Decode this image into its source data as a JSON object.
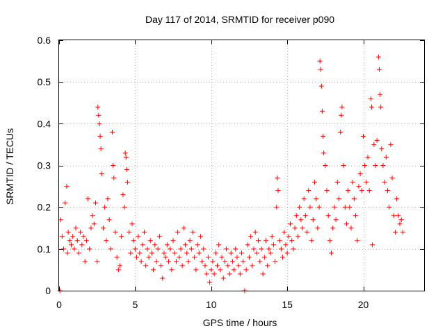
{
  "chart_data": {
    "type": "scatter",
    "title": "Day 117 of 2014, SRMTID for receiver p090",
    "xlabel": "GPS time / hours",
    "ylabel": "SRMTID / TECUs",
    "xlim": [
      0,
      24
    ],
    "ylim": [
      0,
      0.6
    ],
    "xticks": [
      0,
      5,
      10,
      15,
      20
    ],
    "xtick_labels": [
      "0",
      "5",
      "10",
      "15",
      "20"
    ],
    "yticks": [
      0,
      0.1,
      0.2,
      0.3,
      0.4,
      0.5,
      0.6
    ],
    "ytick_labels": [
      "0",
      "0.1",
      "0.2",
      "0.3",
      "0.4",
      "0.5",
      "0.6"
    ],
    "grid": true,
    "marker": "plus",
    "color": "#ff0000",
    "series": [
      {
        "name": "SRMTID",
        "points": [
          [
            0.05,
            0.0
          ],
          [
            0.1,
            0.17
          ],
          [
            0.2,
            0.13
          ],
          [
            0.3,
            0.1
          ],
          [
            0.4,
            0.21
          ],
          [
            0.5,
            0.25
          ],
          [
            0.55,
            0.09
          ],
          [
            0.6,
            0.14
          ],
          [
            0.7,
            0.12
          ],
          [
            0.8,
            0.11
          ],
          [
            0.9,
            0.13
          ],
          [
            1.0,
            0.1
          ],
          [
            1.1,
            0.15
          ],
          [
            1.2,
            0.12
          ],
          [
            1.3,
            0.09
          ],
          [
            1.4,
            0.14
          ],
          [
            1.5,
            0.11
          ],
          [
            1.6,
            0.13
          ],
          [
            1.7,
            0.07
          ],
          [
            1.8,
            0.12
          ],
          [
            1.9,
            0.22
          ],
          [
            2.0,
            0.1
          ],
          [
            2.1,
            0.15
          ],
          [
            2.2,
            0.18
          ],
          [
            2.3,
            0.16
          ],
          [
            2.4,
            0.21
          ],
          [
            2.5,
            0.07
          ],
          [
            2.55,
            0.44
          ],
          [
            2.6,
            0.42
          ],
          [
            2.65,
            0.4
          ],
          [
            2.7,
            0.37
          ],
          [
            2.75,
            0.34
          ],
          [
            2.8,
            0.28
          ],
          [
            2.9,
            0.15
          ],
          [
            3.0,
            0.2
          ],
          [
            3.1,
            0.12
          ],
          [
            3.2,
            0.22
          ],
          [
            3.3,
            0.17
          ],
          [
            3.4,
            0.1
          ],
          [
            3.5,
            0.38
          ],
          [
            3.55,
            0.3
          ],
          [
            3.6,
            0.27
          ],
          [
            3.7,
            0.14
          ],
          [
            3.8,
            0.08
          ],
          [
            3.9,
            0.05
          ],
          [
            4.0,
            0.06
          ],
          [
            4.1,
            0.13
          ],
          [
            4.2,
            0.23
          ],
          [
            4.3,
            0.2
          ],
          [
            4.35,
            0.33
          ],
          [
            4.4,
            0.32
          ],
          [
            4.45,
            0.29
          ],
          [
            4.5,
            0.26
          ],
          [
            4.6,
            0.14
          ],
          [
            4.7,
            0.09
          ],
          [
            4.8,
            0.16
          ],
          [
            4.9,
            0.12
          ],
          [
            5.0,
            0.1
          ],
          [
            5.1,
            0.08
          ],
          [
            5.2,
            0.13
          ],
          [
            5.3,
            0.09
          ],
          [
            5.4,
            0.07
          ],
          [
            5.5,
            0.11
          ],
          [
            5.6,
            0.14
          ],
          [
            5.7,
            0.06
          ],
          [
            5.8,
            0.1
          ],
          [
            5.9,
            0.08
          ],
          [
            6.0,
            0.12
          ],
          [
            6.1,
            0.09
          ],
          [
            6.2,
            0.05
          ],
          [
            6.3,
            0.11
          ],
          [
            6.4,
            0.07
          ],
          [
            6.5,
            0.1
          ],
          [
            6.6,
            0.13
          ],
          [
            6.7,
            0.06
          ],
          [
            6.8,
            0.03
          ],
          [
            6.9,
            0.09
          ],
          [
            7.0,
            0.08
          ],
          [
            7.1,
            0.11
          ],
          [
            7.2,
            0.07
          ],
          [
            7.3,
            0.1
          ],
          [
            7.4,
            0.05
          ],
          [
            7.5,
            0.12
          ],
          [
            7.6,
            0.09
          ],
          [
            7.7,
            0.07
          ],
          [
            7.8,
            0.14
          ],
          [
            7.9,
            0.08
          ],
          [
            8.0,
            0.1
          ],
          [
            8.1,
            0.06
          ],
          [
            8.2,
            0.15
          ],
          [
            8.3,
            0.11
          ],
          [
            8.4,
            0.09
          ],
          [
            8.5,
            0.07
          ],
          [
            8.6,
            0.12
          ],
          [
            8.7,
            0.1
          ],
          [
            8.8,
            0.14
          ],
          [
            8.9,
            0.08
          ],
          [
            9.0,
            0.05
          ],
          [
            9.1,
            0.11
          ],
          [
            9.2,
            0.09
          ],
          [
            9.3,
            0.13
          ],
          [
            9.4,
            0.07
          ],
          [
            9.5,
            0.1
          ],
          [
            9.6,
            0.06
          ],
          [
            9.7,
            0.04
          ],
          [
            9.8,
            0.08
          ],
          [
            9.9,
            0.02
          ],
          [
            10.0,
            0.05
          ],
          [
            10.1,
            0.07
          ],
          [
            10.2,
            0.04
          ],
          [
            10.3,
            0.09
          ],
          [
            10.4,
            0.06
          ],
          [
            10.5,
            0.11
          ],
          [
            10.6,
            0.05
          ],
          [
            10.7,
            0.08
          ],
          [
            10.8,
            0.03
          ],
          [
            10.9,
            0.07
          ],
          [
            11.0,
            0.1
          ],
          [
            11.1,
            0.06
          ],
          [
            11.2,
            0.04
          ],
          [
            11.3,
            0.09
          ],
          [
            11.4,
            0.07
          ],
          [
            11.5,
            0.05
          ],
          [
            11.6,
            0.1
          ],
          [
            11.7,
            0.08
          ],
          [
            11.8,
            0.06
          ],
          [
            11.9,
            0.04
          ],
          [
            12.0,
            0.09
          ],
          [
            12.1,
            0.07
          ],
          [
            12.2,
            0.0
          ],
          [
            12.3,
            0.05
          ],
          [
            12.4,
            0.11
          ],
          [
            12.5,
            0.08
          ],
          [
            12.6,
            0.13
          ],
          [
            12.7,
            0.06
          ],
          [
            12.8,
            0.1
          ],
          [
            12.9,
            0.14
          ],
          [
            13.0,
            0.09
          ],
          [
            13.1,
            0.12
          ],
          [
            13.2,
            0.07
          ],
          [
            13.3,
            0.1
          ],
          [
            13.4,
            0.04
          ],
          [
            13.5,
            0.08
          ],
          [
            13.6,
            0.12
          ],
          [
            13.7,
            0.06
          ],
          [
            13.8,
            0.1
          ],
          [
            13.9,
            0.09
          ],
          [
            14.0,
            0.13
          ],
          [
            14.1,
            0.11
          ],
          [
            14.2,
            0.07
          ],
          [
            14.3,
            0.2
          ],
          [
            14.35,
            0.27
          ],
          [
            14.4,
            0.24
          ],
          [
            14.5,
            0.12
          ],
          [
            14.6,
            0.1
          ],
          [
            14.7,
            0.08
          ],
          [
            14.8,
            0.14
          ],
          [
            14.9,
            0.11
          ],
          [
            15.0,
            0.09
          ],
          [
            15.1,
            0.13
          ],
          [
            15.2,
            0.16
          ],
          [
            15.3,
            0.12
          ],
          [
            15.4,
            0.1
          ],
          [
            15.5,
            0.15
          ],
          [
            15.6,
            0.18
          ],
          [
            15.7,
            0.13
          ],
          [
            15.8,
            0.2
          ],
          [
            15.9,
            0.17
          ],
          [
            16.0,
            0.15
          ],
          [
            16.1,
            0.22
          ],
          [
            16.2,
            0.18
          ],
          [
            16.3,
            0.14
          ],
          [
            16.4,
            0.24
          ],
          [
            16.5,
            0.2
          ],
          [
            16.6,
            0.12
          ],
          [
            16.7,
            0.17
          ],
          [
            16.8,
            0.26
          ],
          [
            16.9,
            0.22
          ],
          [
            17.0,
            0.15
          ],
          [
            17.1,
            0.2
          ],
          [
            17.15,
            0.55
          ],
          [
            17.2,
            0.53
          ],
          [
            17.25,
            0.49
          ],
          [
            17.3,
            0.43
          ],
          [
            17.35,
            0.37
          ],
          [
            17.4,
            0.33
          ],
          [
            17.5,
            0.3
          ],
          [
            17.6,
            0.24
          ],
          [
            17.7,
            0.18
          ],
          [
            17.8,
            0.12
          ],
          [
            17.9,
            0.09
          ],
          [
            18.0,
            0.15
          ],
          [
            18.1,
            0.2
          ],
          [
            18.2,
            0.17
          ],
          [
            18.3,
            0.26
          ],
          [
            18.4,
            0.22
          ],
          [
            18.5,
            0.38
          ],
          [
            18.55,
            0.42
          ],
          [
            18.6,
            0.44
          ],
          [
            18.7,
            0.3
          ],
          [
            18.8,
            0.2
          ],
          [
            18.9,
            0.16
          ],
          [
            19.0,
            0.24
          ],
          [
            19.1,
            0.2
          ],
          [
            19.2,
            0.15
          ],
          [
            19.3,
            0.26
          ],
          [
            19.4,
            0.22
          ],
          [
            19.5,
            0.18
          ],
          [
            19.6,
            0.12
          ],
          [
            19.7,
            0.25
          ],
          [
            19.8,
            0.28
          ],
          [
            19.9,
            0.24
          ],
          [
            20.0,
            0.37
          ],
          [
            20.1,
            0.3
          ],
          [
            20.2,
            0.26
          ],
          [
            20.3,
            0.32
          ],
          [
            20.4,
            0.24
          ],
          [
            20.5,
            0.46
          ],
          [
            20.55,
            0.44
          ],
          [
            20.6,
            0.11
          ],
          [
            20.7,
            0.35
          ],
          [
            20.8,
            0.3
          ],
          [
            20.9,
            0.36
          ],
          [
            21.0,
            0.56
          ],
          [
            21.05,
            0.53
          ],
          [
            21.1,
            0.47
          ],
          [
            21.15,
            0.44
          ],
          [
            21.2,
            0.34
          ],
          [
            21.3,
            0.3
          ],
          [
            21.4,
            0.26
          ],
          [
            21.5,
            0.32
          ],
          [
            21.6,
            0.24
          ],
          [
            21.7,
            0.2
          ],
          [
            21.8,
            0.35
          ],
          [
            21.9,
            0.27
          ],
          [
            22.0,
            0.18
          ],
          [
            22.1,
            0.14
          ],
          [
            22.2,
            0.22
          ],
          [
            22.3,
            0.18
          ],
          [
            22.4,
            0.16
          ],
          [
            22.5,
            0.17
          ],
          [
            22.6,
            0.14
          ]
        ]
      }
    ]
  }
}
